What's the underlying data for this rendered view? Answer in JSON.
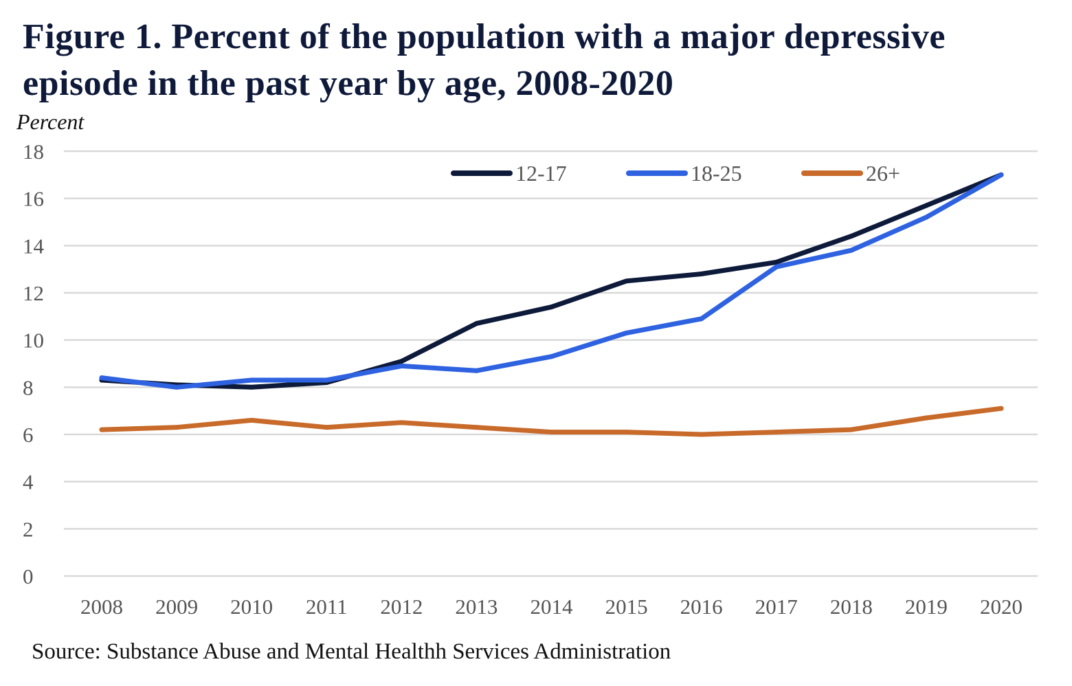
{
  "chart_data": {
    "type": "line",
    "title": "Figure 1. Percent of the population with a major depressive episode in the past year by age, 2008-2020",
    "ylabel": "Percent",
    "xlabel": "",
    "source": "Source: Substance Abuse and Mental Healthh Services Administration",
    "x": [
      "2008",
      "2009",
      "2010",
      "2011",
      "2012",
      "2013",
      "2014",
      "2015",
      "2016",
      "2017",
      "2018",
      "2019",
      "2020"
    ],
    "ylim": [
      0,
      18
    ],
    "yticks": [
      "0",
      "2",
      "4",
      "6",
      "8",
      "10",
      "12",
      "14",
      "16",
      "18"
    ],
    "grid": true,
    "legend_position": "top-right",
    "series": [
      {
        "name": "12-17",
        "color": "#0d1a3a",
        "values": [
          8.3,
          8.1,
          8.0,
          8.2,
          9.1,
          10.7,
          11.4,
          12.5,
          12.8,
          13.3,
          14.4,
          15.7,
          17.0
        ]
      },
      {
        "name": "18-25",
        "color": "#2e62e0",
        "values": [
          8.4,
          8.0,
          8.3,
          8.3,
          8.9,
          8.7,
          9.3,
          10.3,
          10.9,
          13.1,
          13.8,
          15.2,
          17.0
        ]
      },
      {
        "name": "26+",
        "color": "#c86a2a",
        "values": [
          6.2,
          6.3,
          6.6,
          6.3,
          6.5,
          6.3,
          6.1,
          6.1,
          6.0,
          6.1,
          6.2,
          6.7,
          7.1
        ]
      }
    ]
  }
}
